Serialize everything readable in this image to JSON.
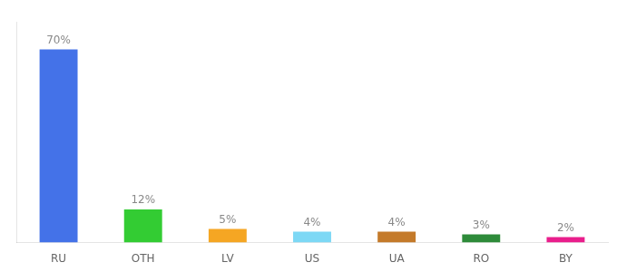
{
  "chart_data": {
    "type": "bar",
    "categories": [
      "RU",
      "OTH",
      "LV",
      "US",
      "UA",
      "RO",
      "BY"
    ],
    "values": [
      70,
      12,
      5,
      4,
      4,
      3,
      2
    ],
    "value_labels": [
      "70%",
      "12%",
      "5%",
      "4%",
      "4%",
      "3%",
      "2%"
    ],
    "colors": [
      "#4472e8",
      "#33cc33",
      "#f5a623",
      "#7dd8f5",
      "#c47a2a",
      "#2e8b3a",
      "#e91e8c"
    ],
    "ylim": [
      0,
      80
    ],
    "grid": false,
    "data_labels": true,
    "tick_labels": "x"
  }
}
